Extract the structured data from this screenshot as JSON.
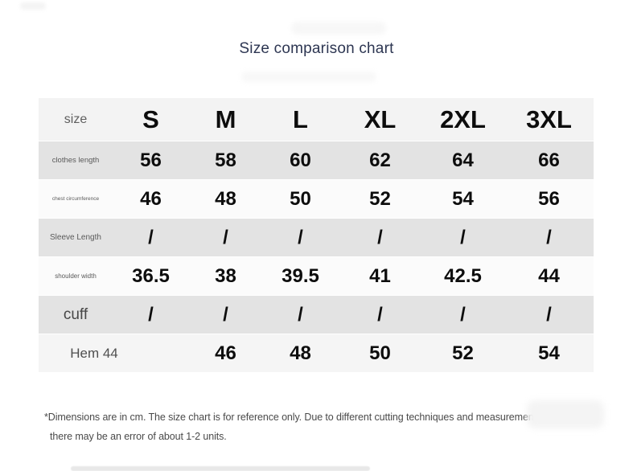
{
  "page": {
    "title": "Size comparison chart",
    "footnote_line1": "*Dimensions are in cm. The size chart is for reference only. Due to different cutting techniques and measurement methods,",
    "footnote_line2": "there may be an error of about 1-2 units."
  },
  "colors": {
    "title_text": "#2d3652",
    "header_row_bg": "#f3f3f3",
    "stripe_dark_bg": "#e3e3e3",
    "stripe_light_bg": "#fbfbfb",
    "hem_row_bg": "#f5f5f5",
    "value_text": "#0d0d0d",
    "label_text": "#5a5a5a",
    "footnote_text": "#4a4a4a"
  },
  "chart_data": {
    "type": "table",
    "title": "Size comparison chart",
    "columns": [
      "size",
      "S",
      "M",
      "L",
      "XL",
      "2XL",
      "3XL"
    ],
    "rows": [
      {
        "label": "clothes length",
        "values": [
          "56",
          "58",
          "60",
          "62",
          "64",
          "66"
        ]
      },
      {
        "label": "chest circumference",
        "values": [
          "46",
          "48",
          "50",
          "52",
          "54",
          "56"
        ]
      },
      {
        "label": "Sleeve Length",
        "values": [
          "/",
          "/",
          "/",
          "/",
          "/",
          "/"
        ]
      },
      {
        "label": "shoulder width",
        "values": [
          "36.5",
          "38",
          "39.5",
          "41",
          "42.5",
          "44"
        ]
      },
      {
        "label": "cuff",
        "values": [
          "/",
          "/",
          "/",
          "/",
          "/",
          "/"
        ]
      },
      {
        "label": "Hem 44",
        "values": [
          "",
          "46",
          "48",
          "50",
          "52",
          "54"
        ]
      }
    ],
    "units": "cm",
    "footnote": "*Dimensions are in cm. The size chart is for reference only. Due to different cutting techniques and measurement methods, there may be an error of about 1-2 units."
  }
}
